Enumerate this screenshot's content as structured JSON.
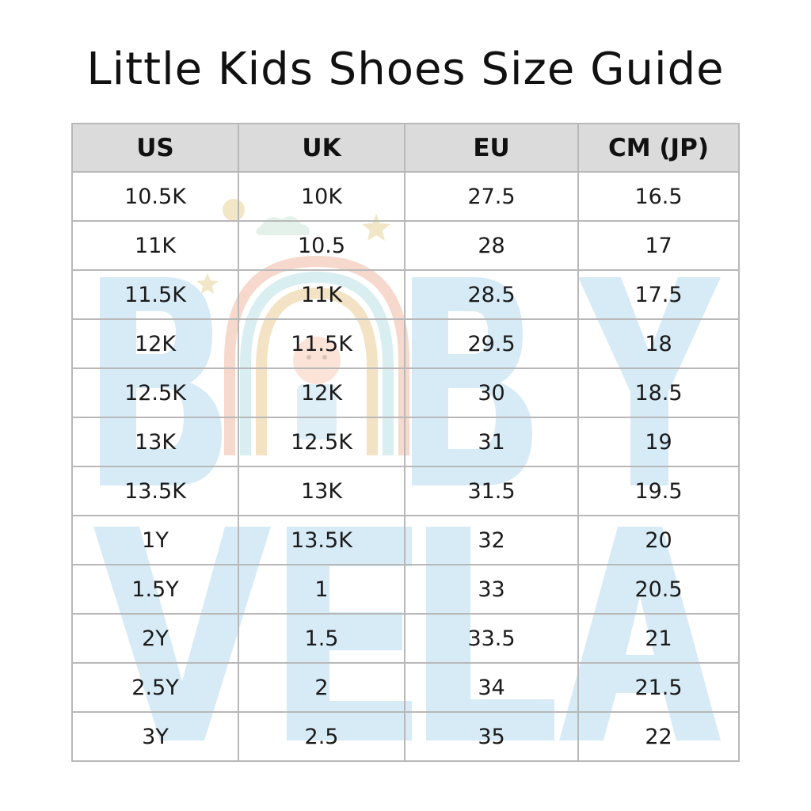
{
  "title": "Little Kids Shoes Size Guide",
  "table": {
    "headers": [
      "US",
      "UK",
      "EU",
      "CM (JP)"
    ],
    "rows": [
      [
        "10.5K",
        "10K",
        "27.5",
        "16.5"
      ],
      [
        "11K",
        "10.5",
        "28",
        "17"
      ],
      [
        "11.5K",
        "11K",
        "28.5",
        "17.5"
      ],
      [
        "12K",
        "11.5K",
        "29.5",
        "18"
      ],
      [
        "12.5K",
        "12K",
        "30",
        "18.5"
      ],
      [
        "13K",
        "12.5K",
        "31",
        "19"
      ],
      [
        "13.5K",
        "13K",
        "31.5",
        "19.5"
      ],
      [
        "1Y",
        "13.5K",
        "32",
        "20"
      ],
      [
        "1.5Y",
        "1",
        "33",
        "20.5"
      ],
      [
        "2Y",
        "1.5",
        "33.5",
        "21"
      ],
      [
        "2.5Y",
        "2",
        "34",
        "21.5"
      ],
      [
        "3Y",
        "2.5",
        "35",
        "22"
      ]
    ]
  },
  "watermark": {
    "text_line1": "BABY",
    "text_line2": "VELA",
    "color": "#d6ebf6",
    "rainbow_colors": [
      "#f6d9cc",
      "#d9eef0",
      "#f3e2c4"
    ],
    "icon": "rainbow-baby-logo-icon"
  }
}
